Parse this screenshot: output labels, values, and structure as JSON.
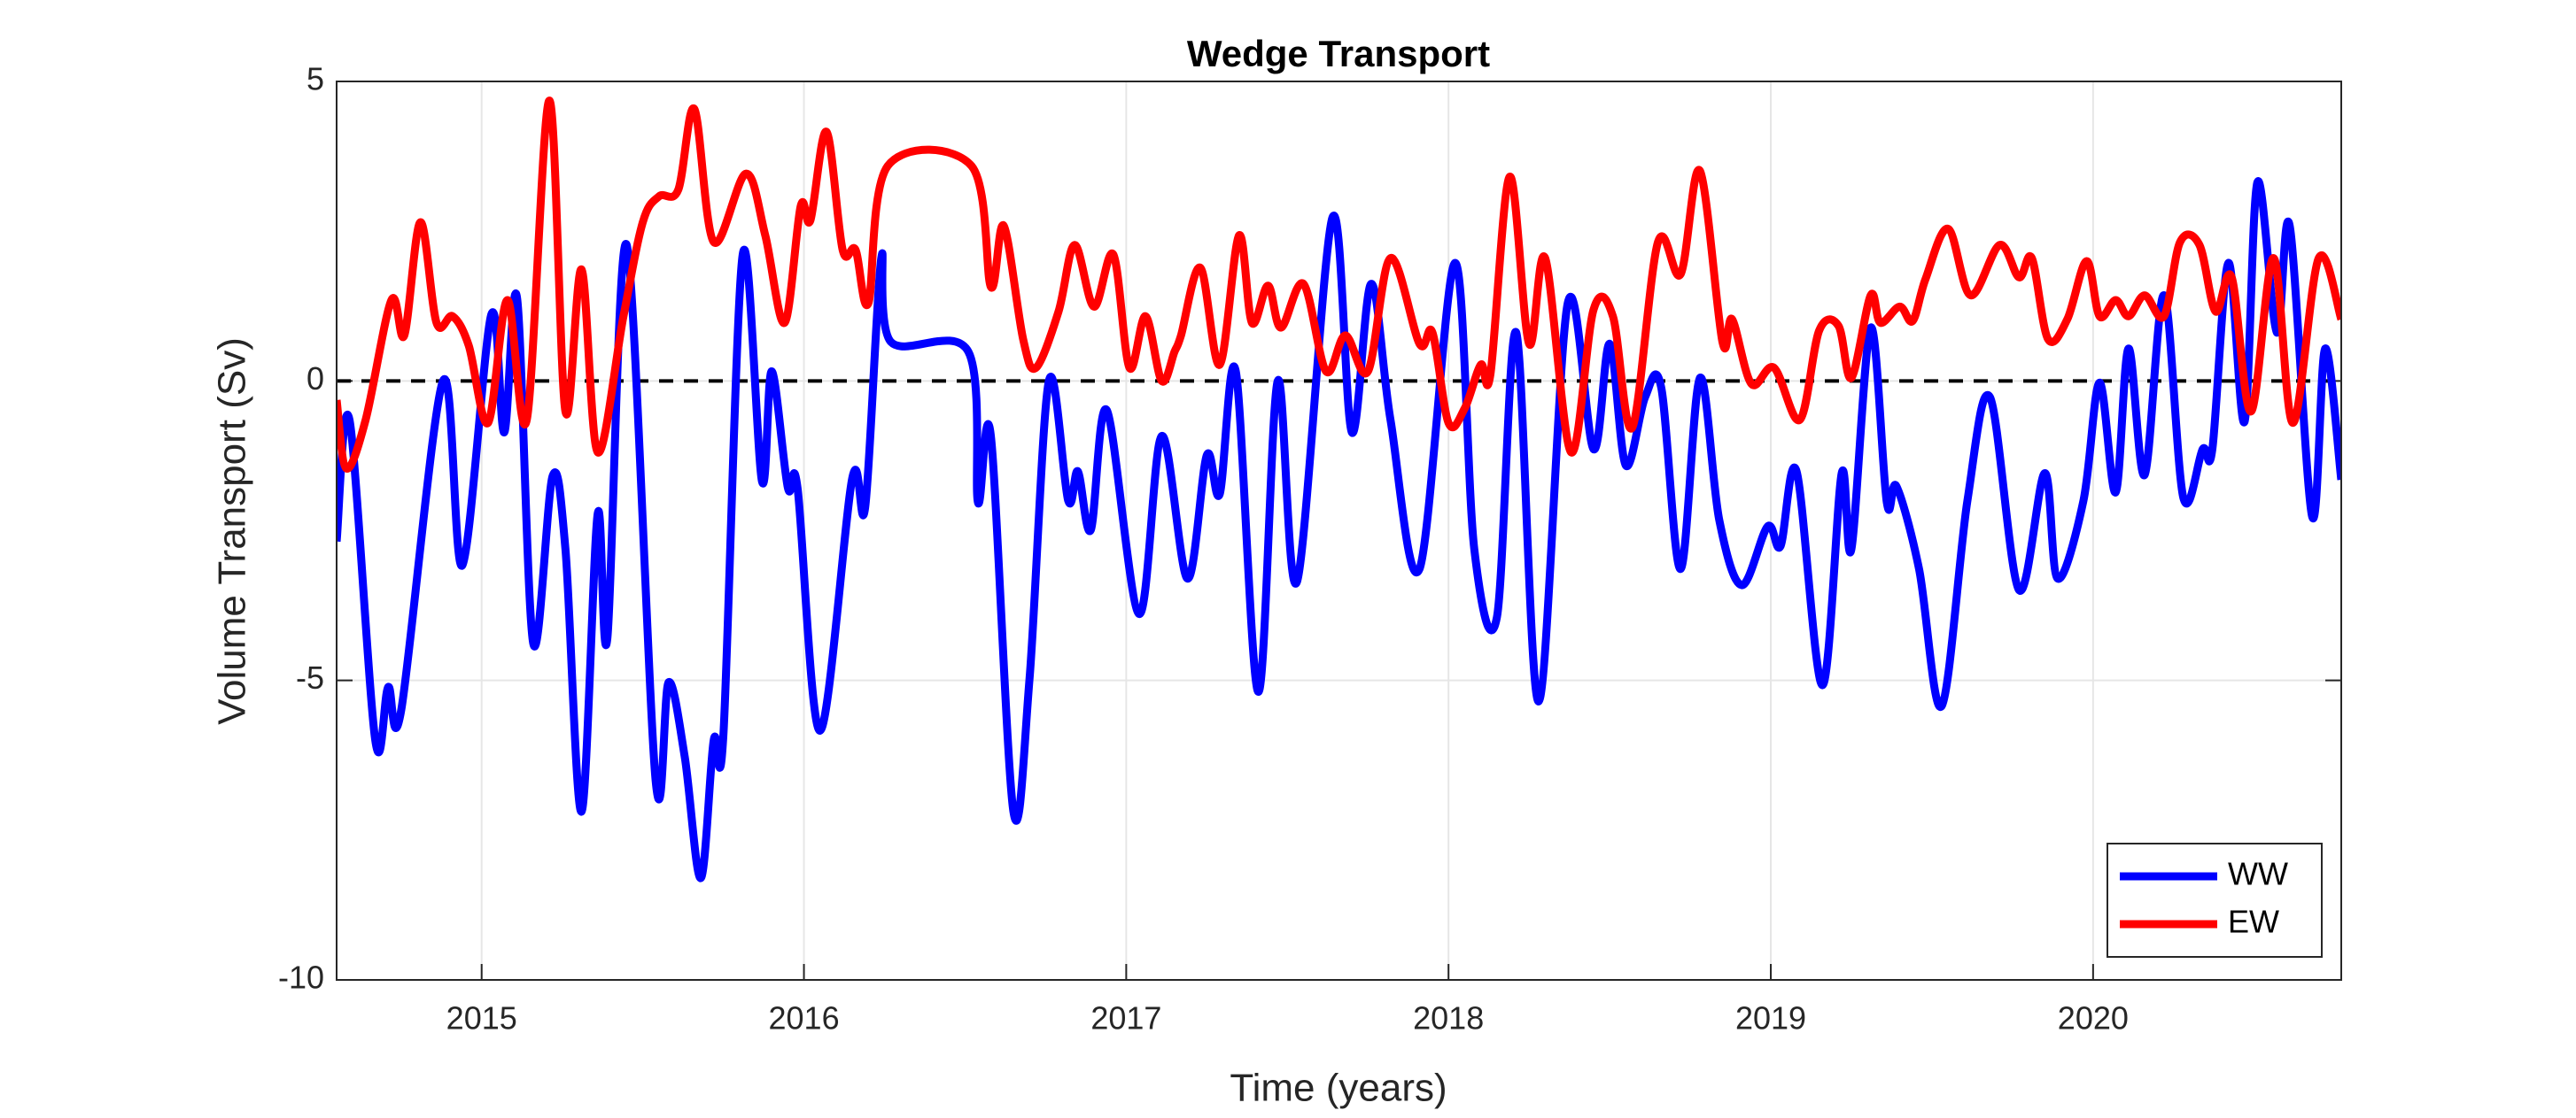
{
  "chart_data": {
    "type": "line",
    "title": "Wedge Transport",
    "x_label": "Time (years)",
    "y_label": "Volume Transport (Sv)",
    "xlim": [
      2014.55,
      2020.77
    ],
    "xticks": [
      2015,
      2016,
      2017,
      2018,
      2019,
      2020
    ],
    "ylim": [
      -10,
      5
    ],
    "yticks": [
      -10,
      -5,
      0,
      5
    ],
    "grid": true,
    "legend": "lower right",
    "hline": 0,
    "series": [
      {
        "name": "WW",
        "color": "#0000ff",
        "x": [
          2014.55,
          2014.59,
          2014.67,
          2014.71,
          2014.75,
          2014.88,
          2014.94,
          2015.03,
          2015.07,
          2015.11,
          2015.16,
          2015.22,
          2015.26,
          2015.31,
          2015.36,
          2015.39,
          2015.45,
          2015.54,
          2015.58,
          2015.63,
          2015.68,
          2015.72,
          2015.75,
          2015.81,
          2015.87,
          2015.9,
          2015.95,
          2015.98,
          2016.05,
          2016.15,
          2016.19,
          2016.24,
          2016.27,
          2016.51,
          2016.54,
          2016.58,
          2016.65,
          2016.7,
          2016.76,
          2016.82,
          2016.85,
          2016.89,
          2016.94,
          2017.04,
          2017.11,
          2017.19,
          2017.25,
          2017.29,
          2017.34,
          2017.41,
          2017.47,
          2017.53,
          2017.64,
          2017.7,
          2017.76,
          2017.82,
          2017.91,
          2018.02,
          2018.08,
          2018.15,
          2018.21,
          2018.28,
          2018.37,
          2018.45,
          2018.5,
          2018.55,
          2018.61,
          2018.66,
          2018.72,
          2018.78,
          2018.84,
          2018.91,
          2018.99,
          2019.03,
          2019.08,
          2019.16,
          2019.22,
          2019.25,
          2019.31,
          2019.36,
          2019.39,
          2019.46,
          2019.53,
          2019.61,
          2019.68,
          2019.77,
          2019.85,
          2019.89,
          2019.97,
          2020.02,
          2020.07,
          2020.11,
          2020.16,
          2020.22,
          2020.28,
          2020.34,
          2020.37,
          2020.42,
          2020.47,
          2020.51,
          2020.57,
          2020.61,
          2020.68,
          2020.72,
          2020.77
        ],
        "values": [
          -2.68,
          -0.65,
          -6.0,
          -5.11,
          -5.51,
          0,
          -3.08,
          1.11,
          -0.86,
          1.38,
          -4.38,
          -1.59,
          -2.81,
          -7.19,
          -2.22,
          -4.3,
          2.27,
          -6.68,
          -5.03,
          -6.27,
          -8.3,
          -6.0,
          -5.92,
          2.11,
          -1.68,
          0.16,
          -1.78,
          -1.78,
          -5.84,
          -1.62,
          -2.11,
          2.05,
          0.65,
          0.49,
          -2.03,
          -0.92,
          -7.19,
          -4.97,
          0,
          -2.0,
          -1.51,
          -2.49,
          -0.49,
          -3.89,
          -0.92,
          -3.3,
          -1.24,
          -1.89,
          0.16,
          -5.19,
          0,
          -3.35,
          2.73,
          -0.86,
          1.62,
          -0.65,
          -3.14,
          1.97,
          -2.81,
          -3.95,
          0.81,
          -5.35,
          1.3,
          -1.14,
          0.62,
          -1.41,
          -0.27,
          -0.11,
          -3.14,
          0.05,
          -2.32,
          -3.41,
          -2.43,
          -2.76,
          -1.51,
          -5.08,
          -1.54,
          -2.81,
          0.89,
          -2.03,
          -1.76,
          -3.14,
          -5.43,
          -2.0,
          -0.27,
          -3.49,
          -1.54,
          -3.3,
          -2.0,
          -0.03,
          -1.86,
          0.54,
          -1.57,
          1.43,
          -1.95,
          -1.14,
          -1.14,
          1.97,
          -0.68,
          3.32,
          0.81,
          2.59,
          -2.27,
          0.54,
          -1.65
        ]
      },
      {
        "name": "EW",
        "color": "#ff0000",
        "x": [
          2014.55,
          2014.58,
          2014.64,
          2014.72,
          2014.76,
          2014.81,
          2014.86,
          2014.91,
          2014.96,
          2015.02,
          2015.08,
          2015.14,
          2015.21,
          2015.26,
          2015.31,
          2015.36,
          2015.44,
          2015.5,
          2015.55,
          2015.61,
          2015.66,
          2015.72,
          2015.82,
          2015.88,
          2015.94,
          2015.99,
          2016.02,
          2016.07,
          2016.12,
          2016.16,
          2016.2,
          2016.26,
          2016.52,
          2016.58,
          2016.62,
          2016.68,
          2016.72,
          2016.79,
          2016.84,
          2016.9,
          2016.96,
          2017.01,
          2017.06,
          2017.11,
          2017.15,
          2017.17,
          2017.23,
          2017.29,
          2017.35,
          2017.39,
          2017.44,
          2017.48,
          2017.55,
          2017.62,
          2017.68,
          2017.75,
          2017.82,
          2017.91,
          2017.95,
          2018.0,
          2018.05,
          2018.1,
          2018.13,
          2018.19,
          2018.25,
          2018.3,
          2018.38,
          2018.45,
          2018.51,
          2018.57,
          2018.65,
          2018.72,
          2018.78,
          2018.85,
          2018.88,
          2018.94,
          2019.01,
          2019.09,
          2019.15,
          2019.21,
          2019.25,
          2019.31,
          2019.34,
          2019.4,
          2019.44,
          2019.48,
          2019.55,
          2019.62,
          2019.71,
          2019.77,
          2019.81,
          2019.86,
          2019.92,
          2019.98,
          2020.02,
          2020.07,
          2020.11,
          2020.16,
          2020.22,
          2020.27,
          2020.33,
          2020.38,
          2020.43,
          2020.49,
          2020.56,
          2020.62,
          2020.7,
          2020.77
        ],
        "values": [
          -0.32,
          -1.46,
          -0.65,
          1.35,
          0.76,
          2.65,
          0.97,
          1.08,
          0.59,
          -0.7,
          1.35,
          -0.65,
          4.68,
          -0.51,
          1.86,
          -1.19,
          1.08,
          2.65,
          3.08,
          3.19,
          4.54,
          2.32,
          3.46,
          2.43,
          0.97,
          2.92,
          2.68,
          4.16,
          2.19,
          2.19,
          1.3,
          3.59,
          3.59,
          1.57,
          2.59,
          0.7,
          0.22,
          1.16,
          2.27,
          1.24,
          2.11,
          0.22,
          1.08,
          0,
          0.49,
          0.76,
          1.89,
          0.27,
          2.43,
          0.97,
          1.59,
          0.89,
          1.62,
          0.16,
          0.76,
          0.16,
          2.05,
          0.62,
          0.81,
          -0.7,
          -0.46,
          0.27,
          0.11,
          3.41,
          0.62,
          2.05,
          -1.19,
          1.19,
          1.08,
          -0.78,
          2.32,
          1.78,
          3.51,
          0.65,
          1.03,
          -0.05,
          0.22,
          -0.65,
          0.84,
          0.92,
          0.05,
          1.43,
          0.97,
          1.24,
          1.0,
          1.7,
          2.54,
          1.43,
          2.27,
          1.73,
          2.05,
          0.7,
          1.03,
          2.0,
          1.08,
          1.35,
          1.08,
          1.43,
          1.08,
          2.32,
          2.27,
          1.16,
          1.73,
          -0.51,
          2.05,
          -0.7,
          2.05,
          1.03
        ]
      }
    ]
  }
}
